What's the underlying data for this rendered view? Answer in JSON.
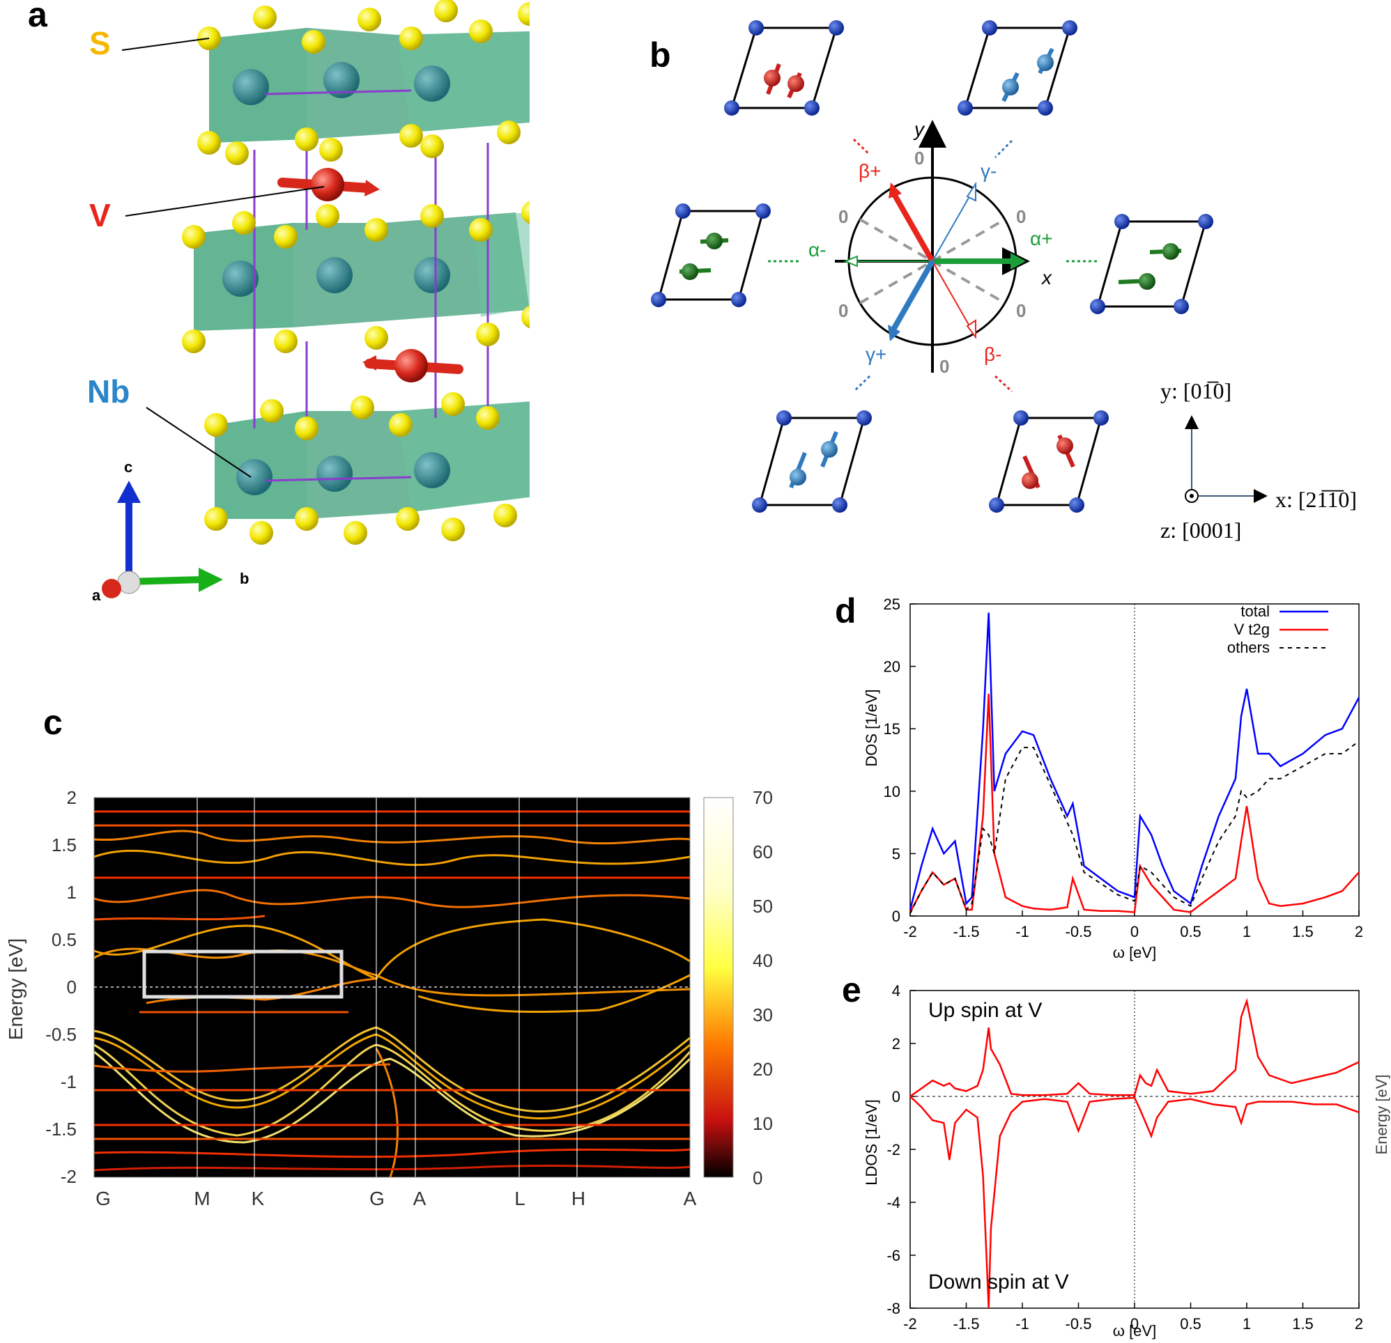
{
  "panel_labels": {
    "a": "a",
    "b": "b",
    "c": "c",
    "d": "d",
    "e": "e"
  },
  "panel_a": {
    "atoms": [
      {
        "label": "S",
        "color": "#f5b800"
      },
      {
        "label": "V",
        "color": "#e8251c"
      },
      {
        "label": "Nb",
        "color": "#2a86c8"
      }
    ],
    "axes": {
      "c": "c",
      "a": "a",
      "b": "b"
    }
  },
  "panel_b": {
    "axis_x": "x",
    "axis_y": "y",
    "zero_label": "0",
    "domains": [
      {
        "id": "alpha_plus",
        "label": "α+",
        "color": "#1a9e3a"
      },
      {
        "id": "alpha_minus",
        "label": "α-",
        "color": "#1a9e3a"
      },
      {
        "id": "beta_plus",
        "label": "β+",
        "color": "#e8251c"
      },
      {
        "id": "beta_minus",
        "label": "β-",
        "color": "#e8251c"
      },
      {
        "id": "gamma_plus",
        "label": "γ+",
        "color": "#2f7ac0"
      },
      {
        "id": "gamma_minus",
        "label": "γ-",
        "color": "#2f7ac0"
      }
    ],
    "crystal_axes": {
      "y_axis": "y: [01̅0]",
      "x_axis": "x: [21̅1̅0]",
      "z_axis": "z: [0001]"
    }
  },
  "panel_c": {
    "ylabel": "Energy [eV]",
    "yticks": [
      "2",
      "1.5",
      "1",
      "0.5",
      "0",
      "-0.5",
      "-1",
      "-1.5",
      "-2"
    ],
    "kpoints": [
      "G",
      "M",
      "K",
      "G",
      "A",
      "L",
      "H",
      "A"
    ],
    "colorbar_ticks": [
      "70",
      "60",
      "50",
      "40",
      "30",
      "20",
      "10",
      "0"
    ]
  },
  "chart_data": [
    {
      "type": "line",
      "panel": "d",
      "xlabel": "ω [eV]",
      "ylabel": "DOS [1/eV]",
      "xlim": [
        -2,
        2
      ],
      "ylim": [
        0,
        25
      ],
      "xticks": [
        "-2",
        "-1.5",
        "-1",
        "-0.5",
        "0",
        "0.5",
        "1",
        "1.5",
        "2"
      ],
      "yticks": [
        "0",
        "5",
        "10",
        "15",
        "20",
        "25"
      ],
      "x": [
        -2.0,
        -1.9,
        -1.8,
        -1.7,
        -1.6,
        -1.5,
        -1.45,
        -1.35,
        -1.3,
        -1.25,
        -1.15,
        -1.0,
        -0.9,
        -0.75,
        -0.6,
        -0.55,
        -0.45,
        -0.3,
        -0.15,
        0.0,
        0.05,
        0.15,
        0.25,
        0.35,
        0.5,
        0.6,
        0.75,
        0.9,
        0.95,
        1.0,
        1.1,
        1.2,
        1.3,
        1.5,
        1.7,
        1.85,
        2.0
      ],
      "series": [
        {
          "name": "total",
          "color": "#0000ff",
          "dash": "none",
          "values": [
            0.5,
            4.0,
            7.0,
            5.0,
            6.0,
            1.0,
            1.5,
            15.0,
            24.3,
            10.0,
            13.0,
            14.8,
            14.5,
            11.0,
            8.0,
            9.0,
            4.0,
            3.0,
            2.0,
            1.5,
            8.0,
            6.5,
            4.0,
            2.0,
            1.0,
            4.0,
            8.0,
            11.0,
            16.0,
            18.2,
            13.0,
            13.0,
            12.0,
            13.0,
            14.5,
            15.0,
            17.5
          ]
        },
        {
          "name": "V t2g",
          "color": "#ff0000",
          "dash": "none",
          "values": [
            0.3,
            2.0,
            3.5,
            2.5,
            3.0,
            0.5,
            0.5,
            8.0,
            17.8,
            5.0,
            1.5,
            0.8,
            0.6,
            0.5,
            0.7,
            3.0,
            0.5,
            0.4,
            0.4,
            0.3,
            4.0,
            2.5,
            1.5,
            0.5,
            0.3,
            1.0,
            2.0,
            3.0,
            6.0,
            8.8,
            3.0,
            1.0,
            0.8,
            1.0,
            1.5,
            2.0,
            3.5
          ]
        },
        {
          "name": "others",
          "color": "#000000",
          "dash": "6,6",
          "values": [
            0.2,
            2.0,
            3.5,
            2.5,
            3.0,
            0.5,
            1.0,
            7.0,
            6.5,
            5.0,
            11.0,
            13.5,
            13.5,
            10.5,
            7.5,
            6.5,
            3.5,
            2.6,
            1.7,
            1.2,
            4.0,
            3.5,
            2.5,
            1.5,
            0.8,
            3.0,
            6.0,
            8.0,
            10.0,
            9.5,
            10.0,
            11.0,
            11.0,
            12.0,
            13.0,
            13.0,
            14.0
          ]
        }
      ]
    },
    {
      "type": "line",
      "panel": "e",
      "xlabel": "ω [eV]",
      "ylabel": "LDOS [1/eV]",
      "xlim": [
        -2,
        2
      ],
      "ylim": [
        -8,
        4
      ],
      "xticks": [
        "-2",
        "-1.5",
        "-1",
        "-0.5",
        "0",
        "0.5",
        "1",
        "1.5",
        "2"
      ],
      "yticks": [
        "4",
        "2",
        "0",
        "-2",
        "-4",
        "-6",
        "-8"
      ],
      "annotations": {
        "up": "Up spin at V",
        "down": "Down spin at V",
        "right_axis": "Energy [eV]"
      },
      "x": [
        -2.0,
        -1.9,
        -1.8,
        -1.7,
        -1.65,
        -1.6,
        -1.5,
        -1.4,
        -1.35,
        -1.3,
        -1.28,
        -1.2,
        -1.1,
        -1.0,
        -0.8,
        -0.6,
        -0.5,
        -0.4,
        -0.2,
        0.0,
        0.05,
        0.1,
        0.15,
        0.2,
        0.3,
        0.5,
        0.7,
        0.9,
        0.95,
        1.0,
        1.1,
        1.2,
        1.4,
        1.6,
        1.8,
        2.0
      ],
      "series": [
        {
          "name": "up",
          "color": "#ff0000",
          "dash": "none",
          "values": [
            0.0,
            0.3,
            0.6,
            0.4,
            0.5,
            0.3,
            0.2,
            0.4,
            1.0,
            2.6,
            1.8,
            1.2,
            0.1,
            0.05,
            0.05,
            0.1,
            0.5,
            0.1,
            0.05,
            0.05,
            0.8,
            0.5,
            0.4,
            1.0,
            0.2,
            0.1,
            0.2,
            1.0,
            3.0,
            3.6,
            1.5,
            0.8,
            0.5,
            0.7,
            0.9,
            1.3
          ]
        },
        {
          "name": "down",
          "color": "#ff0000",
          "dash": "none",
          "values": [
            0.0,
            -0.4,
            -0.9,
            -1.0,
            -2.4,
            -1.0,
            -0.5,
            -0.8,
            -3.0,
            -8.0,
            -5.0,
            -1.5,
            -0.6,
            -0.2,
            -0.1,
            -0.2,
            -1.3,
            -0.2,
            -0.1,
            -0.05,
            -0.5,
            -1.0,
            -1.5,
            -0.8,
            -0.2,
            -0.1,
            -0.3,
            -0.4,
            -1.0,
            -0.3,
            -0.2,
            -0.2,
            -0.2,
            -0.3,
            -0.3,
            -0.6
          ]
        }
      ]
    }
  ]
}
